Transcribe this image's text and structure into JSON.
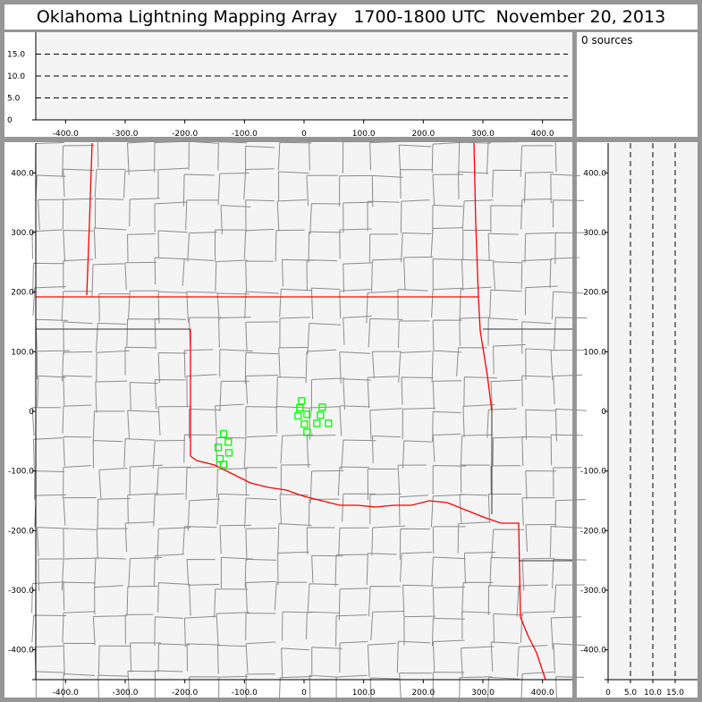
{
  "title": "Oklahoma Lightning Mapping Array   1700-1800 UTC  November 20, 2013",
  "info": {
    "source_count": "0 sources"
  },
  "colors": {
    "background": "#969696",
    "plot_bg": "#f4f4f4",
    "state_border": "#ff0000",
    "county_border": "#8c8c8c",
    "station": "#00ff00"
  },
  "chart_data": [
    {
      "panel": "altitude-vs-east-west",
      "type": "scatter",
      "xlim": [
        -450,
        450
      ],
      "ylim": [
        0,
        20
      ],
      "xticks": [
        "-400.0",
        "-300.0",
        "-200.0",
        "-100.0",
        "0",
        "100.0",
        "200.0",
        "300.0",
        "400.0"
      ],
      "xtick_values": [
        -400,
        -300,
        -200,
        -100,
        0,
        100,
        200,
        300,
        400
      ],
      "yticks": [
        "0",
        "5.0",
        "10.0",
        "15.0"
      ],
      "ytick_values": [
        0,
        5,
        10,
        15
      ],
      "dashed_reference_lines": [
        5,
        10,
        15
      ],
      "points": []
    },
    {
      "panel": "plan-view-map",
      "type": "scatter",
      "xlim": [
        -450,
        450
      ],
      "ylim": [
        -450,
        450
      ],
      "xticks": [
        "-400.0",
        "-300.0",
        "-200.0",
        "-100.0",
        "0",
        "100.0",
        "200.0",
        "300.0",
        "400.0"
      ],
      "xtick_values": [
        -400,
        -300,
        -200,
        -100,
        0,
        100,
        200,
        300,
        400
      ],
      "yticks": [
        "400.0",
        "300.0",
        "200.0",
        "100.0",
        "0",
        "-100.0",
        "-200.0",
        "-300.0",
        "-400.0"
      ],
      "ytick_values": [
        400,
        300,
        200,
        100,
        0,
        -100,
        -200,
        -300,
        -400
      ],
      "stations": [
        [
          -4,
          17.5
        ],
        [
          -7,
          6
        ],
        [
          30.5,
          7
        ],
        [
          -10,
          -7.5
        ],
        [
          5,
          -5
        ],
        [
          27.5,
          -6.5
        ],
        [
          0.5,
          -21.5
        ],
        [
          21.5,
          -20
        ],
        [
          41,
          -20
        ],
        [
          5,
          -35
        ],
        [
          -135,
          -38
        ],
        [
          -127,
          -51.5
        ],
        [
          -144,
          -60.5
        ],
        [
          -126,
          -69.5
        ],
        [
          -141,
          -79.5
        ],
        [
          -135,
          -89
        ]
      ],
      "points": []
    },
    {
      "panel": "north-south-vs-altitude",
      "type": "scatter",
      "xlim": [
        0,
        20
      ],
      "ylim": [
        -450,
        450
      ],
      "xticks": [
        "0",
        "5.0",
        "10.0",
        "15.0"
      ],
      "xtick_values": [
        0,
        5,
        10,
        15
      ],
      "yticks": [
        "400.0",
        "300.0",
        "200.0",
        "100.0",
        "0",
        "-100.0",
        "-200.0",
        "-300.0",
        "-400.0"
      ],
      "ytick_values": [
        400,
        300,
        200,
        100,
        0,
        -100,
        -200,
        -300,
        -400
      ],
      "dashed_reference_lines": [
        5,
        10,
        15
      ],
      "points": []
    }
  ]
}
